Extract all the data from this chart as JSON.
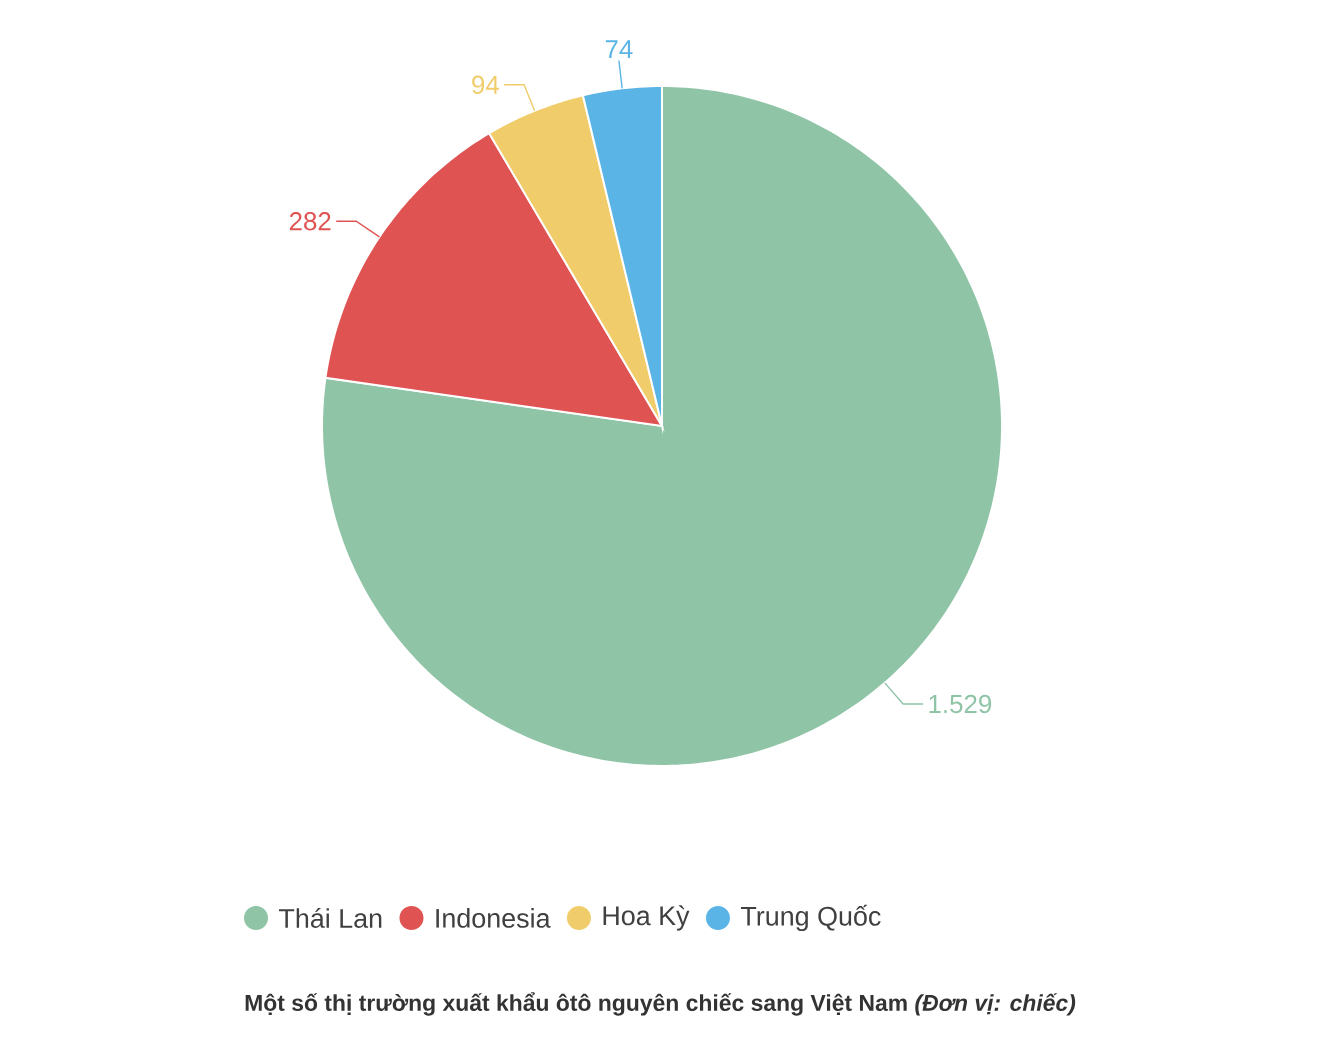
{
  "chart_data": {
    "type": "pie",
    "title": "Một số thị trường xuất khẩu ôtô nguyên chiếc sang Việt Nam *(Đơn vị: chiếc)*",
    "categories": [
      "Thái Lan",
      "Indonesia",
      "Hoa Kỳ",
      "Trung Quốc"
    ],
    "values": [
      1529,
      282,
      94,
      74
    ],
    "value_labels": [
      "1.529",
      "282",
      "94",
      "74"
    ],
    "colors": [
      "#8fc4a7",
      "#e05353",
      "#f0cc6a",
      "#5ab4e5"
    ],
    "legend": "bottom"
  }
}
